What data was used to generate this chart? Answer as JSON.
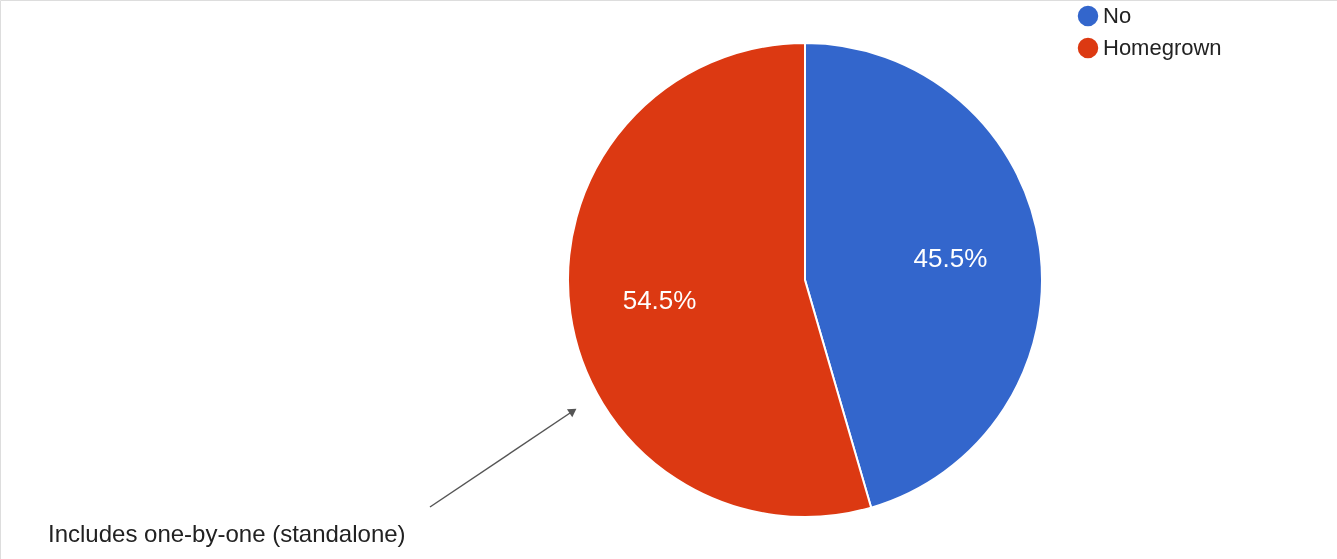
{
  "chart_data": {
    "type": "pie",
    "categories": [
      "No",
      "Homegrown"
    ],
    "values": [
      45.5,
      54.5
    ],
    "colors": [
      "#3366cc",
      "#dc3912"
    ],
    "value_labels": [
      "45.5%",
      "54.5%"
    ],
    "legend": "top right",
    "annotations": [
      "Includes one-by-one (standalone)"
    ]
  }
}
